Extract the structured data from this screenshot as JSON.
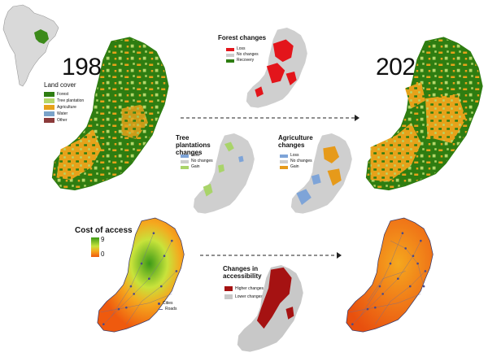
{
  "years": {
    "start": "1986",
    "end": "2021"
  },
  "land_cover_legend": {
    "title": "Land cover",
    "items": [
      {
        "label": "Forest",
        "color": "#2e7d11"
      },
      {
        "label": "Tree plantation",
        "color": "#b5d76a"
      },
      {
        "label": "Agriculture",
        "color": "#e6a21a"
      },
      {
        "label": "Water",
        "color": "#7aa3c9"
      },
      {
        "label": "Other",
        "color": "#8b3a3a"
      }
    ]
  },
  "forest_changes": {
    "title": "Forest changes",
    "items": [
      {
        "label": "Loss",
        "color": "#e3151b"
      },
      {
        "label": "No changes",
        "color": "#cccccc"
      },
      {
        "label": "Recovery",
        "color": "#2e7d11"
      }
    ]
  },
  "tree_plantation_changes": {
    "title": "Tree plantations changes",
    "items": [
      {
        "label": "Loss",
        "color": "#7ea4d8"
      },
      {
        "label": "No changes",
        "color": "#cccccc"
      },
      {
        "label": "Gain",
        "color": "#a9d46a"
      }
    ]
  },
  "agriculture_changes": {
    "title": "Agriculture changes",
    "items": [
      {
        "label": "Loss",
        "color": "#7ea4d8"
      },
      {
        "label": "No changes",
        "color": "#cccccc"
      },
      {
        "label": "Gain",
        "color": "#e69a1a"
      }
    ]
  },
  "cost_of_access": {
    "title": "Cost of access",
    "max_label": "9",
    "min_label": "0",
    "high_color": "#3c9a17",
    "low_color": "#ef5a0e",
    "cities_label": "Cities",
    "roads_label": "Roads"
  },
  "accessibility_changes": {
    "title": "Changes in accessibility",
    "items": [
      {
        "label": "Higher changes",
        "color": "#a51212"
      },
      {
        "label": "Lower changes",
        "color": "#c8c8c8"
      }
    ]
  }
}
